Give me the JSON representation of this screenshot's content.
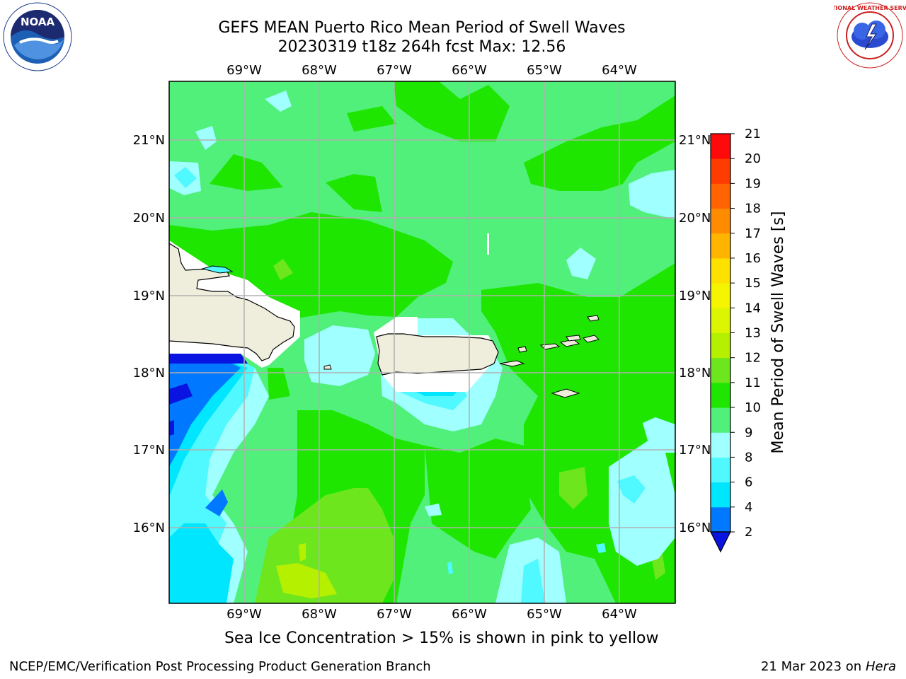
{
  "header": {
    "title_line1": "GEFS MEAN Puerto Rico Mean Period of Swell Waves",
    "title_line2": "20230319 t18z 264h fcst   Max: 12.56"
  },
  "map": {
    "lon_labels": [
      "69°W",
      "68°W",
      "67°W",
      "66°W",
      "65°W",
      "64°W"
    ],
    "lat_labels": [
      "21°N",
      "20°N",
      "19°N",
      "18°N",
      "17°N",
      "16°N"
    ],
    "land_color": "#efeedd",
    "grid_color": "#b0b0b0"
  },
  "colorbar": {
    "label": "Mean Period of Swell Waves [s]",
    "ticks": [
      "2",
      "4",
      "6",
      "8",
      "9",
      "10",
      "11",
      "12",
      "13",
      "14",
      "15",
      "16",
      "17",
      "18",
      "19",
      "20",
      "21"
    ],
    "colors": [
      "#0a14e0",
      "#0078ff",
      "#00e6ff",
      "#50f8ff",
      "#a0ffff",
      "#50f07a",
      "#1ee600",
      "#6ee61e",
      "#b4f000",
      "#dcf500",
      "#f5f500",
      "#ffe100",
      "#ffb400",
      "#ff8c00",
      "#ff6400",
      "#ff3c00",
      "#ff0a0a"
    ]
  },
  "subtitle": "Sea Ice Concentration > 15% is shown in pink to yellow",
  "footer": {
    "left": "NCEP/EMC/Verification Post Processing Product Generation Branch",
    "right_date": "21 Mar 2023 on",
    "right_machine": "Hera"
  },
  "logos": {
    "left": "noaa-logo",
    "right": "nws-logo",
    "nws_text": "NATIONAL WEATHER SERVICE"
  }
}
